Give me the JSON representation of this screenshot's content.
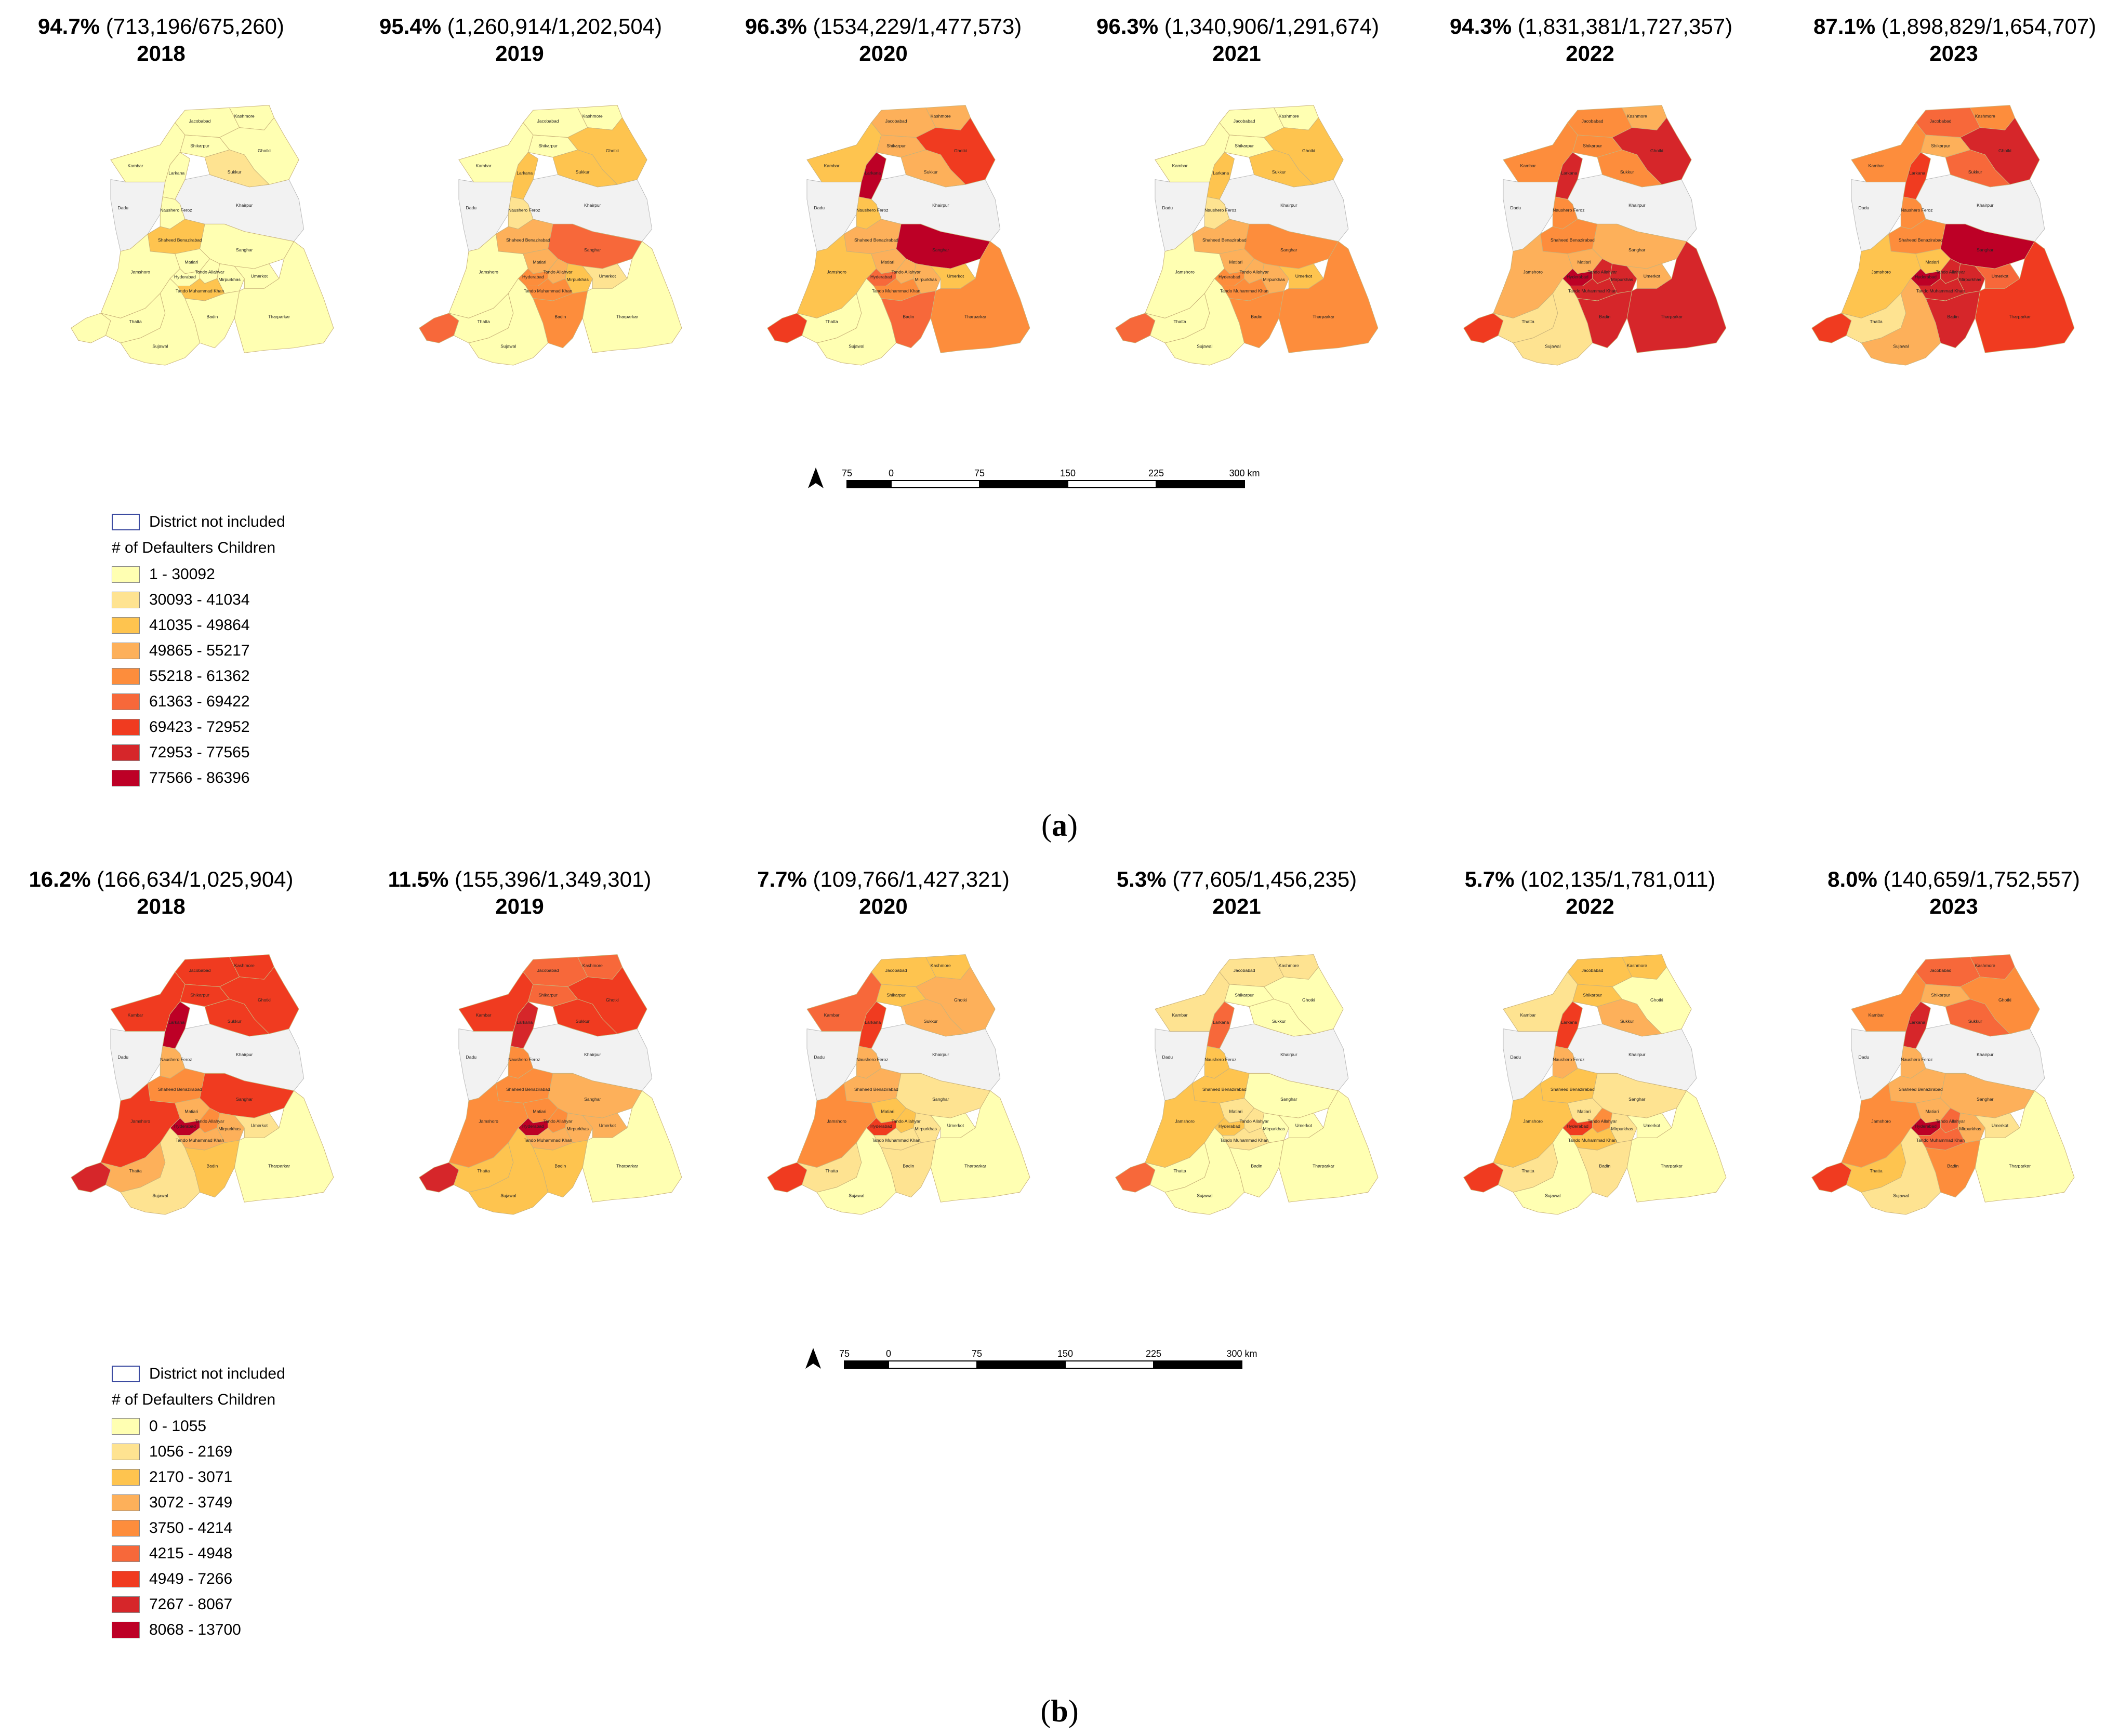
{
  "panel_a": {
    "label_open": "(",
    "label_letter": "a",
    "label_close": ")",
    "maps": [
      {
        "pct": "94.7%",
        "detail": " (713,196/675,260)",
        "year": "2018",
        "colors": {
          "Jacobabad": 0,
          "Kashmore": 0,
          "Shikarpur": 0,
          "Ghotki": 0,
          "Kambar": 0,
          "Larkana": 0,
          "Sukkur": 1,
          "NausheroFeroz": 0,
          "Khairpur": "none",
          "Dadu": "none",
          "Shaheed": 2,
          "Sanghar": 0,
          "Jamshoro": 0,
          "Matiari": 0,
          "Hyderabad": 0,
          "TandoAllahyar": 0,
          "Mirpurkhas": 0,
          "Umerkot": 0,
          "TMKhan": 2,
          "Karachi": 0,
          "Thatta": 0,
          "Badin": 0,
          "Tharparkar": 0,
          "Sujawal": 0
        }
      },
      {
        "pct": "95.4%",
        "detail": " (1,260,914/1,202,504)",
        "year": "2019",
        "colors": {
          "Jacobabad": 0,
          "Kashmore": 0,
          "Shikarpur": 0,
          "Ghotki": 2,
          "Kambar": 0,
          "Larkana": 2,
          "Sukkur": 2,
          "NausheroFeroz": 1,
          "Khairpur": "none",
          "Dadu": "none",
          "Shaheed": 3,
          "Sanghar": 5,
          "Jamshoro": 0,
          "Matiari": 3,
          "Hyderabad": 4,
          "TandoAllahyar": 3,
          "Mirpurkhas": 2,
          "Umerkot": 1,
          "TMKhan": 4,
          "Karachi": 5,
          "Thatta": 0,
          "Badin": 4,
          "Tharparkar": 0,
          "Sujawal": 0
        }
      },
      {
        "pct": "96.3%",
        "detail": " (1534,229/1,477,573)",
        "year": "2020",
        "colors": {
          "Jacobabad": 3,
          "Kashmore": 3,
          "Shikarpur": 3,
          "Ghotki": 6,
          "Kambar": 2,
          "Larkana": 8,
          "Sukkur": 3,
          "NausheroFeroz": 2,
          "Khairpur": "none",
          "Dadu": "none",
          "Shaheed": 3,
          "Sanghar": 8,
          "Jamshoro": 2,
          "Matiari": 3,
          "Hyderabad": 5,
          "TandoAllahyar": 3,
          "Mirpurkhas": 3,
          "Umerkot": 2,
          "TMKhan": 4,
          "Karachi": 6,
          "Thatta": 0,
          "Badin": 5,
          "Tharparkar": 4,
          "Sujawal": 0
        }
      },
      {
        "pct": "96.3%",
        "detail": " (1,340,906/1,291,674)",
        "year": "2021",
        "colors": {
          "Jacobabad": 0,
          "Kashmore": 0,
          "Shikarpur": 0,
          "Ghotki": 2,
          "Kambar": 0,
          "Larkana": 2,
          "Sukkur": 2,
          "NausheroFeroz": 1,
          "Khairpur": "none",
          "Dadu": "none",
          "Shaheed": 3,
          "Sanghar": 4,
          "Jamshoro": 0,
          "Matiari": 3,
          "Hyderabad": 4,
          "TandoAllahyar": 3,
          "Mirpurkhas": 3,
          "Umerkot": 2,
          "TMKhan": 4,
          "Karachi": 5,
          "Thatta": 0,
          "Badin": 4,
          "Tharparkar": 4,
          "Sujawal": 0
        }
      },
      {
        "pct": "94.3%",
        "detail": " (1,831,381/1,727,357)",
        "year": "2022",
        "colors": {
          "Jacobabad": 4,
          "Kashmore": 3,
          "Shikarpur": 4,
          "Ghotki": 7,
          "Kambar": 4,
          "Larkana": 7,
          "Sukkur": 4,
          "NausheroFeroz": 4,
          "Khairpur": "none",
          "Dadu": "none",
          "Shaheed": 4,
          "Sanghar": 3,
          "Jamshoro": 3,
          "Matiari": 3,
          "Hyderabad": 8,
          "TandoAllahyar": 7,
          "Mirpurkhas": 7,
          "Umerkot": 3,
          "TMKhan": 7,
          "Karachi": 6,
          "Thatta": 1,
          "Badin": 7,
          "Tharparkar": 7,
          "Sujawal": 1
        }
      },
      {
        "pct": "87.1%",
        "detail": " (1,898,829/1,654,707)",
        "year": "2023",
        "colors": {
          "Jacobabad": 5,
          "Kashmore": 4,
          "Shikarpur": 3,
          "Ghotki": 7,
          "Kambar": 4,
          "Larkana": 6,
          "Sukkur": 5,
          "NausheroFeroz": 4,
          "Khairpur": "none",
          "Dadu": "none",
          "Shaheed": 4,
          "Sanghar": 8,
          "Jamshoro": 2,
          "Matiari": 2,
          "Hyderabad": 8,
          "TandoAllahyar": 7,
          "Mirpurkhas": 7,
          "Umerkot": 5,
          "TMKhan": 7,
          "Karachi": 6,
          "Thatta": 1,
          "Badin": 7,
          "Tharparkar": 6,
          "Sujawal": 3
        }
      }
    ],
    "legend": {
      "none_label": "District not included",
      "title": "# of Defaulters Children",
      "classes": [
        "1 - 30092",
        "30093 - 41034",
        "41035 - 49864",
        "49865 - 55217",
        "55218 - 61362",
        "61363 - 69422",
        "69423 - 72952",
        "72953 - 77565",
        "77566 - 86396"
      ]
    },
    "scale": {
      "ticks": [
        "75",
        "0",
        "75",
        "150",
        "225",
        "300 km"
      ]
    }
  },
  "panel_b": {
    "label_open": "(",
    "label_letter": "b",
    "label_close": ")",
    "maps": [
      {
        "pct": "16.2%",
        "detail": " (166,634/1,025,904)",
        "year": "2018",
        "colors": {
          "Jacobabad": 6,
          "Kashmore": 6,
          "Shikarpur": 6,
          "Ghotki": 6,
          "Kambar": 6,
          "Larkana": 8,
          "Sukkur": 6,
          "NausheroFeroz": 3,
          "Khairpur": "none",
          "Dadu": "none",
          "Shaheed": 4,
          "Sanghar": 6,
          "Jamshoro": 6,
          "Matiari": 3,
          "Hyderabad": 8,
          "TandoAllahyar": 4,
          "Mirpurkhas": 3,
          "Umerkot": 1,
          "TMKhan": 3,
          "Karachi": 7,
          "Thatta": 3,
          "Badin": 2,
          "Tharparkar": 0,
          "Sujawal": 1
        }
      },
      {
        "pct": "11.5%",
        "detail": " (155,396/1,349,301)",
        "year": "2019",
        "colors": {
          "Jacobabad": 5,
          "Kashmore": 5,
          "Shikarpur": 5,
          "Ghotki": 6,
          "Kambar": 6,
          "Larkana": 7,
          "Sukkur": 6,
          "NausheroFeroz": 4,
          "Khairpur": "none",
          "Dadu": "none",
          "Shaheed": 4,
          "Sanghar": 3,
          "Jamshoro": 4,
          "Matiari": 4,
          "Hyderabad": 8,
          "TandoAllahyar": 4,
          "Mirpurkhas": 3,
          "Umerkot": 3,
          "TMKhan": 3,
          "Karachi": 7,
          "Thatta": 2,
          "Badin": 2,
          "Tharparkar": 0,
          "Sujawal": 2
        }
      },
      {
        "pct": "7.7%",
        "detail": " (109,766/1,427,321)",
        "year": "2020",
        "colors": {
          "Jacobabad": 2,
          "Kashmore": 2,
          "Shikarpur": 2,
          "Ghotki": 3,
          "Kambar": 5,
          "Larkana": 6,
          "Sukkur": 3,
          "NausheroFeroz": 3,
          "Khairpur": "none",
          "Dadu": "none",
          "Shaheed": 3,
          "Sanghar": 1,
          "Jamshoro": 4,
          "Matiari": 2,
          "Hyderabad": 6,
          "TandoAllahyar": 2,
          "Mirpurkhas": 1,
          "Umerkot": 0,
          "TMKhan": 1,
          "Karachi": 6,
          "Thatta": 1,
          "Badin": 1,
          "Tharparkar": 0,
          "Sujawal": 0
        }
      },
      {
        "pct": "5.3%",
        "detail": " (77,605/1,456,235)",
        "year": "2021",
        "colors": {
          "Jacobabad": 1,
          "Kashmore": 1,
          "Shikarpur": 0,
          "Ghotki": 0,
          "Kambar": 1,
          "Larkana": 5,
          "Sukkur": 0,
          "NausheroFeroz": 2,
          "Khairpur": "none",
          "Dadu": "none",
          "Shaheed": 2,
          "Sanghar": 0,
          "Jamshoro": 2,
          "Matiari": 1,
          "Hyderabad": 2,
          "TandoAllahyar": 1,
          "Mirpurkhas": 0,
          "Umerkot": 0,
          "TMKhan": 1,
          "Karachi": 5,
          "Thatta": 0,
          "Badin": 0,
          "Tharparkar": 0,
          "Sujawal": 0
        }
      },
      {
        "pct": "5.7%",
        "detail": " (102,135/1,781,011)",
        "year": "2022",
        "colors": {
          "Jacobabad": 2,
          "Kashmore": 2,
          "Shikarpur": 2,
          "Ghotki": 0,
          "Kambar": 1,
          "Larkana": 6,
          "Sukkur": 3,
          "NausheroFeroz": 3,
          "Khairpur": "none",
          "Dadu": "none",
          "Shaheed": 2,
          "Sanghar": 1,
          "Jamshoro": 2,
          "Matiari": 1,
          "Hyderabad": 6,
          "TandoAllahyar": 4,
          "Mirpurkhas": 1,
          "Umerkot": 0,
          "TMKhan": 2,
          "Karachi": 6,
          "Thatta": 1,
          "Badin": 1,
          "Tharparkar": 0,
          "Sujawal": 0
        }
      },
      {
        "pct": "8.0%",
        "detail": " (140,659/1,752,557)",
        "year": "2023",
        "colors": {
          "Jacobabad": 5,
          "Kashmore": 5,
          "Shikarpur": 3,
          "Ghotki": 4,
          "Kambar": 4,
          "Larkana": 7,
          "Sukkur": 5,
          "NausheroFeroz": 3,
          "Khairpur": "none",
          "Dadu": "none",
          "Shaheed": 3,
          "Sanghar": 3,
          "Jamshoro": 4,
          "Matiari": 3,
          "Hyderabad": 8,
          "TandoAllahyar": 5,
          "Mirpurkhas": 3,
          "Umerkot": 1,
          "TMKhan": 5,
          "Karachi": 6,
          "Thatta": 2,
          "Badin": 4,
          "Tharparkar": 0,
          "Sujawal": 1
        }
      }
    ],
    "legend": {
      "none_label": "District not included",
      "title": "# of Defaulters Children",
      "classes": [
        "0 - 1055",
        "1056 - 2169",
        "2170 - 3071",
        "3072 - 3749",
        "3750 - 4214",
        "4215 - 4948",
        "4949 - 7266",
        "7267 - 8067",
        "8068 - 13700"
      ]
    },
    "scale": {
      "ticks": [
        "75",
        "0",
        "75",
        "150",
        "225",
        "300 km"
      ]
    }
  },
  "palette": [
    "#ffffb2",
    "#fee391",
    "#fec44f",
    "#fdb05a",
    "#fd8d3c",
    "#f7683a",
    "#f03b20",
    "#d6262a",
    "#bd0026"
  ],
  "no_data_color": "#f2f2f2",
  "district_labels": {
    "Jacobabad": "Jacobabad",
    "Kashmore": "Kashmore",
    "Shikarpur": "Shikarpur",
    "Ghotki": "Ghotki",
    "Kambar": "Kambar",
    "Larkana": "Larkana",
    "Sukkur": "Sukkur",
    "NausheroFeroz": "Naushero Feroz",
    "Khairpur": "Khairpur",
    "Dadu": "Dadu",
    "Shaheed": "Shaheed Benazirabad",
    "Sanghar": "Sanghar",
    "Jamshoro": "Jamshoro",
    "Matiari": "Matiari",
    "Hyderabad": "Hyderabad",
    "TandoAllahyar": "Tando Allahyar",
    "Mirpurkhas": "Mirpurkhas",
    "Umerkot": "Umerkot",
    "TMKhan": "Tando Muhammad Khan",
    "Thatta": "Thatta",
    "Badin": "Badin",
    "Tharparkar": "Tharparkar",
    "Sujawal": "Sujawal"
  }
}
